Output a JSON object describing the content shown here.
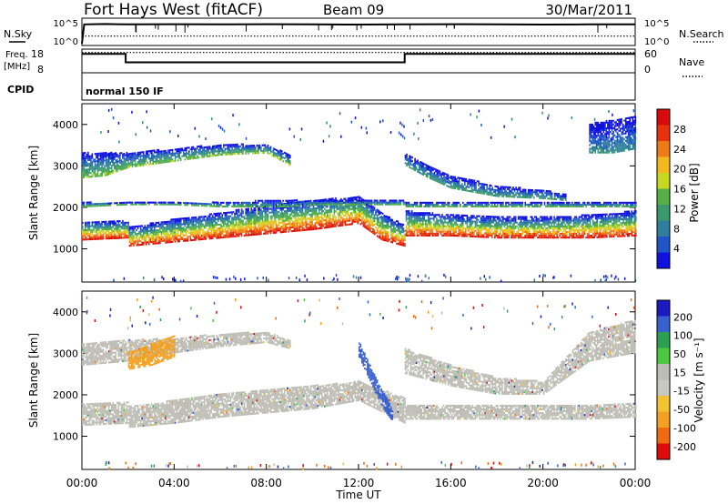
{
  "header": {
    "station": "Fort Hays West (fitACF)",
    "beam": "Beam 09",
    "date": "30/Mar/2011"
  },
  "colors": {
    "frame": "#000000",
    "ground_scatter": "#bdbdb5",
    "power_scale": [
      "#1010e0",
      "#1f55c8",
      "#2f7f9c",
      "#3a9a6e",
      "#55b046",
      "#c8d820",
      "#f2b81e",
      "#f07a16",
      "#e8320e",
      "#d80a0a"
    ],
    "velocity_scale": [
      "#e00a0a",
      "#f26a10",
      "#f4a020",
      "#f2c230",
      "#c8c8c0",
      "#bdbdb5",
      "#4cc840",
      "#2aa050",
      "#3860d0",
      "#1a1ac0"
    ]
  },
  "chart_data": [
    {
      "type": "line",
      "panel": "nsky-nsearch",
      "left_label": "N.Sky",
      "right_label": "N.Search",
      "left_ticks": [
        "10^5",
        "10^0"
      ],
      "right_ticks": [
        "10^5",
        "10^0"
      ],
      "log_scale": true,
      "ylim": [
        1,
        100000
      ],
      "x": [
        0,
        0.1,
        1,
        2,
        4,
        6,
        8,
        10,
        12,
        14,
        16,
        18,
        20,
        22,
        24
      ],
      "series": [
        {
          "name": "N.Sky",
          "style": "solid",
          "values": [
            1,
            12000,
            14000,
            12000,
            13000,
            12000,
            13000,
            12000,
            11000,
            12000,
            13000,
            12000,
            11000,
            12000,
            12000
          ]
        },
        {
          "name": "N.Search",
          "style": "dotted",
          "values": [
            40,
            40,
            40,
            40,
            40,
            40,
            40,
            40,
            40,
            40,
            40,
            40,
            40,
            40,
            40
          ]
        }
      ]
    },
    {
      "type": "line",
      "panel": "freq-nave",
      "left_label": "Freq.",
      "left_unit": "[MHz]",
      "right_label": "Nave",
      "left_ticks": [
        "18",
        "8"
      ],
      "right_ticks": [
        "60",
        "0"
      ],
      "ylim_left": [
        8,
        18
      ],
      "ylim_right": [
        0,
        60
      ],
      "x": [
        0,
        1.9,
        1.9,
        14.0,
        14.0,
        24
      ],
      "series": [
        {
          "name": "Freq.",
          "style": "solid",
          "values": [
            16.5,
            16.5,
            12.3,
            12.3,
            16.5,
            16.5
          ]
        },
        {
          "name": "Nave",
          "style": "dotted",
          "values": [
            50,
            50,
            50,
            50,
            50,
            50
          ]
        }
      ]
    },
    {
      "type": "text",
      "panel": "cpid",
      "label": "CPID",
      "value": "normal 150 IF"
    },
    {
      "type": "heatmap",
      "panel": "power",
      "ylabel": "Slant Range [km]",
      "yticks": [
        "1000",
        "2000",
        "3000",
        "4000"
      ],
      "ylim": [
        200,
        4500
      ],
      "xlim": [
        0,
        24
      ],
      "colorbar": {
        "label": "Power [dB]",
        "ticks": [
          "4",
          "8",
          "12",
          "16",
          "20",
          "24",
          "28"
        ],
        "range": [
          0,
          30
        ]
      },
      "bands": [
        {
          "x": [
            0,
            2,
            2,
            4,
            6,
            8,
            10,
            12,
            13,
            14,
            14,
            16,
            18,
            20,
            22,
            24
          ],
          "lower": [
            1200,
            1250,
            1050,
            1150,
            1250,
            1350,
            1450,
            1600,
            1200,
            1050,
            1300,
            1300,
            1250,
            1250,
            1250,
            1300
          ],
          "upper": [
            1650,
            1650,
            1500,
            1700,
            1850,
            2050,
            2150,
            2250,
            1850,
            1550,
            1900,
            1800,
            1750,
            1750,
            1800,
            1900
          ],
          "peak": 30
        },
        {
          "x": [
            0,
            2,
            4,
            6,
            8,
            9,
            10,
            12,
            14,
            14,
            16,
            18,
            20,
            22,
            24
          ],
          "lower": [
            2000,
            2050,
            2050,
            2000,
            2000,
            2000,
            2050,
            2050,
            2050,
            2000,
            2000,
            2000,
            2000,
            2000,
            2000
          ],
          "upper": [
            2100,
            2100,
            2100,
            2100,
            2150,
            2150,
            2150,
            2150,
            2150,
            2100,
            2100,
            2100,
            2100,
            2100,
            2100
          ],
          "peak": 14
        },
        {
          "x": [
            0,
            1,
            2,
            4,
            6,
            8,
            9
          ],
          "lower": [
            2700,
            2750,
            2950,
            3100,
            3250,
            3300,
            3000
          ],
          "upper": [
            3300,
            3300,
            3300,
            3400,
            3500,
            3500,
            3250
          ],
          "peak": 16
        },
        {
          "x": [
            14,
            15,
            16,
            18,
            20,
            21
          ],
          "lower": [
            3000,
            2700,
            2450,
            2250,
            2200,
            2150
          ],
          "upper": [
            3300,
            3000,
            2750,
            2500,
            2400,
            2300
          ],
          "peak": 12
        },
        {
          "x": [
            22,
            23,
            24
          ],
          "lower": [
            3300,
            3300,
            3400
          ],
          "upper": [
            4000,
            4100,
            4200
          ],
          "peak": 10
        }
      ]
    },
    {
      "type": "heatmap",
      "panel": "velocity",
      "ylabel": "Slant Range [km]",
      "yticks": [
        "1000",
        "2000",
        "3000",
        "4000"
      ],
      "ylim": [
        200,
        4500
      ],
      "xlim": [
        0,
        24
      ],
      "xlabel": "Time UT",
      "xticks": [
        "00:00",
        "04:00",
        "08:00",
        "12:00",
        "16:00",
        "20:00",
        "00:00"
      ],
      "colorbar": {
        "label": "Velocity [m s⁻¹]",
        "ticks": [
          "200",
          "100",
          "50",
          "15",
          "-15",
          "-50",
          "-100",
          "-200"
        ],
        "range": [
          -250,
          250
        ]
      },
      "bands": [
        {
          "x": [
            0,
            2,
            2,
            4,
            6,
            8,
            10,
            12,
            14,
            14,
            16,
            18,
            20,
            22,
            24
          ],
          "lower": [
            1250,
            1300,
            1200,
            1300,
            1450,
            1550,
            1650,
            1850,
            1300,
            1400,
            1400,
            1400,
            1400,
            1400,
            1450
          ],
          "upper": [
            1750,
            1800,
            1700,
            1850,
            2000,
            2100,
            2200,
            2300,
            1900,
            1750,
            1750,
            1750,
            1750,
            1750,
            1800
          ],
          "velocity": 0
        },
        {
          "x": [
            0,
            2,
            4,
            6,
            8,
            9
          ],
          "lower": [
            2700,
            2800,
            3000,
            3150,
            3250,
            3100
          ],
          "upper": [
            3200,
            3300,
            3350,
            3450,
            3500,
            3300
          ],
          "velocity": 0
        },
        {
          "x": [
            12,
            12.5,
            13,
            13.5
          ],
          "lower": [
            2900,
            2300,
            1700,
            1300
          ],
          "upper": [
            3300,
            2700,
            2100,
            1700
          ],
          "velocity": 80
        },
        {
          "x": [
            2,
            3,
            4
          ],
          "lower": [
            2600,
            2700,
            2900
          ],
          "upper": [
            3000,
            3200,
            3400
          ],
          "velocity": -70
        },
        {
          "x": [
            14,
            16,
            18,
            20,
            22,
            24
          ],
          "lower": [
            2500,
            2200,
            2000,
            2000,
            2800,
            3000
          ],
          "upper": [
            3100,
            2700,
            2400,
            2300,
            3500,
            3800
          ],
          "velocity": 0
        }
      ]
    }
  ]
}
